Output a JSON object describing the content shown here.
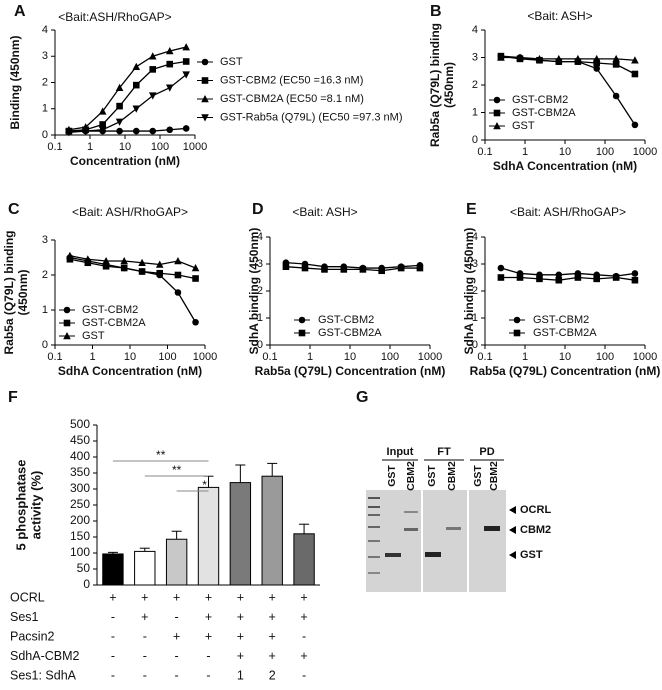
{
  "chart_data": [
    {
      "type": "line",
      "panel": "A",
      "title": "<Bait:ASH/RhoGAP>",
      "x_label": "Concentration (nM)",
      "y_label": [
        "Binding (450nm)"
      ],
      "log_x": true,
      "xlim": [
        0.1,
        1000
      ],
      "xticks": [
        0.1,
        1,
        10,
        100,
        1000
      ],
      "ylim": [
        0,
        4
      ],
      "yticks": [
        0,
        1,
        2,
        3,
        4
      ],
      "x": [
        0.25,
        0.75,
        2.3,
        7,
        21,
        62,
        190,
        560
      ],
      "series": [
        {
          "name": "GST",
          "marker": "circle",
          "color": "#000000",
          "values": [
            0.15,
            0.15,
            0.15,
            0.15,
            0.15,
            0.15,
            0.2,
            0.25
          ]
        },
        {
          "name": "GST-CBM2 (EC50 =16.3 nM)",
          "marker": "square",
          "color": "#000000",
          "values": [
            0.15,
            0.2,
            0.4,
            1.1,
            1.9,
            2.5,
            2.7,
            2.8
          ]
        },
        {
          "name": "GST-CBM2A (EC50 =8.1 nM)",
          "marker": "triangle-up",
          "color": "#000000",
          "values": [
            0.2,
            0.3,
            0.9,
            1.8,
            2.6,
            3.0,
            3.2,
            3.35
          ]
        },
        {
          "name": "GST-Rab5a (Q79L) (EC50 =97.3 nM)",
          "marker": "triangle-down",
          "color": "#000000",
          "values": [
            0.1,
            0.15,
            0.2,
            0.5,
            1.0,
            1.5,
            1.8,
            2.3
          ]
        }
      ]
    },
    {
      "type": "line",
      "panel": "B",
      "title": "<Bait: ASH>",
      "x_label": "SdhA Concentration (nM)",
      "y_label": [
        "Rab5a (Q79L) binding",
        "(450nm)"
      ],
      "log_x": true,
      "xlim": [
        0.1,
        1000
      ],
      "xticks": [
        0.1,
        1,
        10,
        100,
        1000
      ],
      "ylim": [
        0,
        4
      ],
      "yticks": [
        0,
        1,
        2,
        3,
        4
      ],
      "x": [
        0.25,
        0.75,
        2.3,
        7,
        21,
        62,
        190,
        560
      ],
      "series": [
        {
          "name": "GST-CBM2",
          "marker": "circle",
          "color": "#000000",
          "values": [
            3.05,
            3.0,
            2.9,
            2.85,
            2.85,
            2.6,
            1.6,
            0.55
          ]
        },
        {
          "name": "GST-CBM2A",
          "marker": "square",
          "color": "#000000",
          "values": [
            3.05,
            2.95,
            2.9,
            2.85,
            2.85,
            2.8,
            2.75,
            2.4
          ]
        },
        {
          "name": "GST",
          "marker": "triangle-up",
          "color": "#000000",
          "values": [
            3.0,
            3.0,
            2.95,
            2.95,
            2.95,
            2.95,
            2.95,
            2.9
          ]
        }
      ]
    },
    {
      "type": "line",
      "panel": "C",
      "title": "<Bait: ASH/RhoGAP>",
      "x_label": "SdhA Concentration (nM)",
      "y_label": [
        "Rab5a (Q79L) binding",
        "(450nm)"
      ],
      "log_x": true,
      "xlim": [
        0.1,
        1000
      ],
      "xticks": [
        0.1,
        1,
        10,
        100,
        1000
      ],
      "ylim": [
        0,
        3
      ],
      "yticks": [
        0,
        1,
        2,
        3
      ],
      "x": [
        0.25,
        0.75,
        2.3,
        7,
        21,
        62,
        190,
        560
      ],
      "series": [
        {
          "name": "GST-CBM2",
          "marker": "circle",
          "color": "#000000",
          "values": [
            2.5,
            2.4,
            2.3,
            2.2,
            2.1,
            2.0,
            1.5,
            0.65
          ]
        },
        {
          "name": "GST-CBM2A",
          "marker": "square",
          "color": "#000000",
          "values": [
            2.45,
            2.35,
            2.25,
            2.2,
            2.1,
            2.05,
            2.0,
            1.9
          ]
        },
        {
          "name": "GST",
          "marker": "triangle-up",
          "color": "#000000",
          "values": [
            2.55,
            2.45,
            2.4,
            2.4,
            2.35,
            2.3,
            2.4,
            2.2
          ]
        }
      ]
    },
    {
      "type": "line",
      "panel": "D",
      "title": "<Bait: ASH>",
      "x_label": "Rab5a (Q79L) Concentration (nM)",
      "y_label": [
        "SdhA binding (450nm)"
      ],
      "log_x": true,
      "xlim": [
        0.1,
        1000
      ],
      "xticks": [
        0.1,
        1,
        10,
        100,
        1000
      ],
      "ylim": [
        0,
        4
      ],
      "yticks": [
        0,
        1,
        2,
        3,
        4
      ],
      "x": [
        0.25,
        0.75,
        2.3,
        7,
        21,
        62,
        190,
        560
      ],
      "series": [
        {
          "name": "GST-CBM2",
          "marker": "circle",
          "color": "#000000",
          "values": [
            3.05,
            3.0,
            2.9,
            2.9,
            2.85,
            2.85,
            2.9,
            2.95
          ]
        },
        {
          "name": "GST-CBM2A",
          "marker": "square",
          "color": "#000000",
          "values": [
            2.9,
            2.85,
            2.8,
            2.8,
            2.8,
            2.75,
            2.85,
            2.85
          ]
        }
      ]
    },
    {
      "type": "line",
      "panel": "E",
      "title": "<Bait: ASH/RhoGAP>",
      "x_label": "Rab5a (Q79L) Concentration (nM)",
      "y_label": [
        "SdhA binding (450nm)"
      ],
      "log_x": true,
      "xlim": [
        0.1,
        1000
      ],
      "xticks": [
        0.1,
        1,
        10,
        100,
        1000
      ],
      "ylim": [
        0,
        4
      ],
      "yticks": [
        0,
        1,
        2,
        3,
        4
      ],
      "x": [
        0.25,
        0.75,
        2.3,
        7,
        21,
        62,
        190,
        560
      ],
      "series": [
        {
          "name": "GST-CBM2",
          "marker": "circle",
          "color": "#000000",
          "values": [
            2.85,
            2.65,
            2.6,
            2.6,
            2.65,
            2.6,
            2.55,
            2.65
          ]
        },
        {
          "name": "GST-CBM2A",
          "marker": "square",
          "color": "#000000",
          "values": [
            2.5,
            2.5,
            2.45,
            2.4,
            2.5,
            2.45,
            2.5,
            2.4
          ]
        }
      ]
    },
    {
      "type": "bar",
      "panel": "F",
      "y_label": [
        "5 phosphatase",
        "activity (%)"
      ],
      "ylim": [
        0,
        500
      ],
      "yticks": [
        0,
        50,
        100,
        150,
        200,
        250,
        300,
        350,
        400,
        450,
        500
      ],
      "values": [
        97,
        105,
        143,
        305,
        320,
        340,
        160
      ],
      "errors": [
        5,
        10,
        25,
        35,
        55,
        40,
        30
      ],
      "colors": [
        "#000000",
        "#ffffff",
        "#c8c8c8",
        "#e2e2e2",
        "#7a7a7a",
        "#9a9a9a",
        "#6a6a6a"
      ],
      "significance": [
        {
          "from": 0,
          "to": 3,
          "label": "**"
        },
        {
          "from": 1,
          "to": 3,
          "label": "**"
        },
        {
          "from": 2,
          "to": 3,
          "label": "*"
        }
      ],
      "conditions": [
        {
          "label": "OCRL",
          "cells": [
            "+",
            "+",
            "+",
            "+",
            "+",
            "+",
            "+"
          ]
        },
        {
          "label": "Ses1",
          "cells": [
            "-",
            "+",
            "-",
            "+",
            "+",
            "+",
            "+"
          ]
        },
        {
          "label": "Pacsin2",
          "cells": [
            "-",
            "-",
            "+",
            "+",
            "+",
            "+",
            "-"
          ]
        },
        {
          "label": "SdhA-CBM2",
          "cells": [
            "-",
            "-",
            "-",
            "-",
            "+",
            "+",
            "+"
          ]
        },
        {
          "label": "Ses1: SdhA",
          "cells": [
            "-",
            "-",
            "-",
            "-",
            "1",
            "2",
            "-"
          ]
        }
      ]
    }
  ],
  "gel": {
    "panel": "G",
    "groups": [
      "Input",
      "FT",
      "PD"
    ],
    "lanes": [
      "GST",
      "CBM2",
      "GST",
      "CBM2",
      "GST",
      "CBM2"
    ],
    "band_labels": [
      "OCRL",
      "CBM2",
      "GST"
    ]
  }
}
